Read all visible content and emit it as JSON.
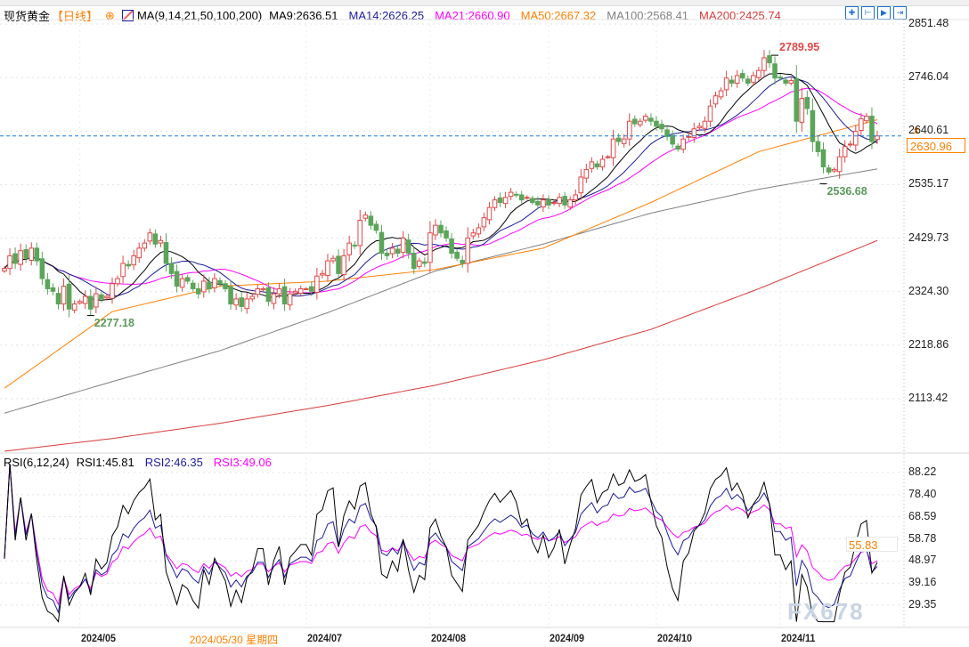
{
  "header": {
    "symbol": "现货黄金",
    "period": "【日线】",
    "indicator_name": "MA(9,14,21,50,100,200)",
    "ma_values": [
      {
        "label": "MA9:2636.51",
        "color": "#000000"
      },
      {
        "label": "MA14:2626.25",
        "color": "#1c1c9c"
      },
      {
        "label": "MA21:2660.90",
        "color": "#ff00ff"
      },
      {
        "label": "MA50:2667.32",
        "color": "#ff7f00"
      },
      {
        "label": "MA100:2568.41",
        "color": "#808080"
      },
      {
        "label": "MA200:2425.74",
        "color": "#d83a3a"
      }
    ],
    "tools": [
      "crosshair-icon",
      "zoom-range-icon",
      "play-icon",
      "scroll-end-icon"
    ]
  },
  "rsi_header": {
    "indicator_name": "RSI(6,12,24)",
    "values": [
      {
        "label": "RSI1:45.81",
        "color": "#000000"
      },
      {
        "label": "RSI2:46.35",
        "color": "#1c1c9c"
      },
      {
        "label": "RSI3:49.06",
        "color": "#ff00ff"
      }
    ]
  },
  "watermark": "FX678",
  "chart_data": [
    {
      "type": "candlestick",
      "title": "现货黄金",
      "yticks": [
        "2851.48",
        "2746.04",
        "2640.61",
        "2535.17",
        "2429.73",
        "2324.30",
        "2218.86",
        "2113.42"
      ],
      "ylim": [
        2000,
        2860
      ],
      "current_price": "2630.96",
      "current_price_level": 2630.96,
      "annotations": [
        {
          "label": "2789.95",
          "value": 2789.95,
          "index": 143,
          "color": "#e04848"
        },
        {
          "label": "2536.68",
          "value": 2536.68,
          "index": 152,
          "color": "#5a9a5a"
        },
        {
          "label": "2277.18",
          "value": 2277.18,
          "index": 16,
          "color": "#5a9a5a"
        }
      ],
      "x_labels": [
        {
          "label": "2024/05",
          "index": 14
        },
        {
          "label": "2024/07",
          "index": 56
        },
        {
          "label": "2024/08",
          "index": 79
        },
        {
          "label": "2024/09",
          "index": 101
        },
        {
          "label": "2024/10",
          "index": 121
        },
        {
          "label": "2024/11",
          "index": 144
        }
      ],
      "crosshair_date": "2024/05/30 星期四",
      "crosshair_index": 35,
      "closes": [
        2370,
        2395,
        2380,
        2405,
        2390,
        2410,
        2385,
        2350,
        2330,
        2325,
        2300,
        2335,
        2290,
        2300,
        2305,
        2315,
        2290,
        2320,
        2310,
        2315,
        2340,
        2350,
        2380,
        2375,
        2395,
        2410,
        2420,
        2440,
        2418,
        2425,
        2380,
        2360,
        2335,
        2350,
        2345,
        2330,
        2320,
        2345,
        2330,
        2350,
        2340,
        2330,
        2300,
        2310,
        2295,
        2310,
        2315,
        2330,
        2330,
        2305,
        2320,
        2330,
        2300,
        2320,
        2325,
        2330,
        2330,
        2325,
        2355,
        2360,
        2385,
        2390,
        2360,
        2395,
        2420,
        2415,
        2465,
        2475,
        2455,
        2445,
        2400,
        2395,
        2410,
        2400,
        2430,
        2400,
        2370,
        2385,
        2380,
        2440,
        2455,
        2440,
        2430,
        2400,
        2390,
        2380,
        2430,
        2440,
        2450,
        2470,
        2490,
        2505,
        2500,
        2510,
        2520,
        2515,
        2505,
        2510,
        2500,
        2495,
        2505,
        2495,
        2500,
        2510,
        2495,
        2505,
        2515,
        2550,
        2565,
        2580,
        2570,
        2585,
        2590,
        2625,
        2620,
        2625,
        2660,
        2655,
        2660,
        2670,
        2660,
        2650,
        2645,
        2630,
        2615,
        2605,
        2625,
        2630,
        2645,
        2650,
        2660,
        2690,
        2710,
        2720,
        2745,
        2735,
        2750,
        2745,
        2735,
        2750,
        2760,
        2785,
        2775,
        2745,
        2745,
        2735,
        2740,
        2660,
        2705,
        2685,
        2620,
        2600,
        2570,
        2560,
        2565,
        2590,
        2610,
        2615,
        2640,
        2665,
        2670,
        2620,
        2631
      ],
      "series": [
        {
          "name": "MA9",
          "period": 9,
          "color": "#000000"
        },
        {
          "name": "MA14",
          "period": 14,
          "color": "#1c1c9c"
        },
        {
          "name": "MA21",
          "period": 21,
          "color": "#ff00ff"
        },
        {
          "name": "MA50",
          "color": "#ff7f00",
          "points": [
            [
              0,
              2134
            ],
            [
              20,
              2285
            ],
            [
              40,
              2335
            ],
            [
              60,
              2345
            ],
            [
              80,
              2368
            ],
            [
              100,
              2410
            ],
            [
              120,
              2500
            ],
            [
              140,
              2600
            ],
            [
              162,
              2663
            ]
          ]
        },
        {
          "name": "MA100",
          "color": "#808080",
          "points": [
            [
              0,
              2085
            ],
            [
              20,
              2147
            ],
            [
              40,
              2208
            ],
            [
              60,
              2283
            ],
            [
              80,
              2365
            ],
            [
              100,
              2418
            ],
            [
              120,
              2479
            ],
            [
              140,
              2526
            ],
            [
              162,
              2566
            ]
          ]
        },
        {
          "name": "MA200",
          "color": "#d83a3a",
          "points": [
            [
              0,
              2010
            ],
            [
              20,
              2035
            ],
            [
              40,
              2065
            ],
            [
              60,
              2100
            ],
            [
              80,
              2140
            ],
            [
              100,
              2190
            ],
            [
              120,
              2250
            ],
            [
              140,
              2330
            ],
            [
              162,
              2425
            ]
          ]
        }
      ],
      "up_color": "#e04848",
      "down_color": "#5ba55b"
    },
    {
      "type": "line",
      "title": "RSI(6,12,24)",
      "yticks": [
        "88.22",
        "78.40",
        "68.59",
        "58.78",
        "48.97",
        "39.16",
        "29.35"
      ],
      "ylim": [
        25,
        92
      ],
      "current_value": "55.83",
      "series": [
        {
          "name": "RSI1",
          "period": 6,
          "color": "#000000"
        },
        {
          "name": "RSI2",
          "period": 12,
          "color": "#1c1c9c"
        },
        {
          "name": "RSI3",
          "period": 24,
          "color": "#ff00ff"
        }
      ]
    }
  ]
}
